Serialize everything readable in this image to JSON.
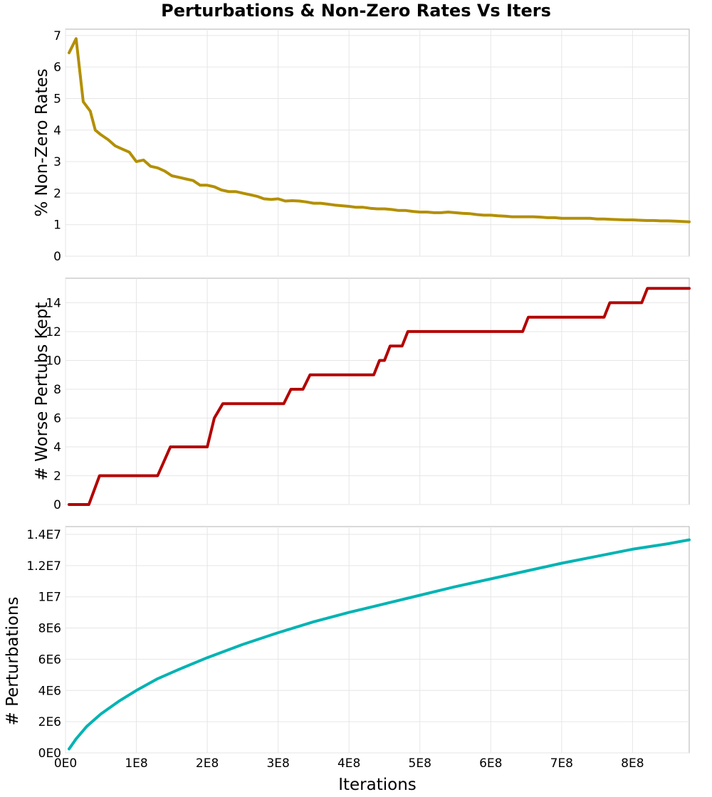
{
  "figure": {
    "title": "Perturbations & Non-Zero Rates Vs Iters",
    "xlabel": "Iterations"
  },
  "chart_data": [
    {
      "type": "line",
      "title": "",
      "ylabel": "% Non-Zero Rates",
      "xlabel": "",
      "xlim": [
        0,
        880000000
      ],
      "ylim": [
        0,
        7.2
      ],
      "yticks": [
        0,
        1,
        2,
        3,
        4,
        5,
        6,
        7
      ],
      "ytick_labels": [
        "0",
        "1",
        "2",
        "3",
        "4",
        "5",
        "6",
        "7"
      ],
      "grid": true,
      "color": "#b38f00",
      "series": [
        {
          "x": [
            5000000,
            15000000,
            25000000,
            35000000,
            42000000,
            50000000,
            60000000,
            70000000,
            80000000,
            90000000,
            100000000,
            110000000,
            120000000,
            130000000,
            140000000,
            150000000,
            160000000,
            170000000,
            180000000,
            190000000,
            200000000,
            210000000,
            220000000,
            230000000,
            240000000,
            250000000,
            260000000,
            270000000,
            280000000,
            290000000,
            300000000,
            310000000,
            320000000,
            330000000,
            340000000,
            350000000,
            360000000,
            370000000,
            380000000,
            390000000,
            400000000,
            410000000,
            420000000,
            430000000,
            440000000,
            450000000,
            460000000,
            470000000,
            480000000,
            490000000,
            500000000,
            510000000,
            520000000,
            530000000,
            540000000,
            550000000,
            560000000,
            570000000,
            580000000,
            590000000,
            600000000,
            610000000,
            620000000,
            630000000,
            640000000,
            650000000,
            660000000,
            670000000,
            680000000,
            690000000,
            700000000,
            710000000,
            720000000,
            730000000,
            740000000,
            750000000,
            760000000,
            770000000,
            780000000,
            790000000,
            800000000,
            810000000,
            820000000,
            830000000,
            840000000,
            850000000,
            860000000,
            870000000,
            880000000
          ],
          "y": [
            6.45,
            6.9,
            4.9,
            4.6,
            4.0,
            3.85,
            3.7,
            3.5,
            3.4,
            3.3,
            3.0,
            3.05,
            2.85,
            2.8,
            2.7,
            2.55,
            2.5,
            2.45,
            2.4,
            2.25,
            2.25,
            2.2,
            2.1,
            2.05,
            2.05,
            2.0,
            1.95,
            1.9,
            1.82,
            1.8,
            1.82,
            1.75,
            1.76,
            1.75,
            1.72,
            1.68,
            1.68,
            1.65,
            1.62,
            1.6,
            1.58,
            1.55,
            1.55,
            1.52,
            1.5,
            1.5,
            1.48,
            1.45,
            1.45,
            1.42,
            1.4,
            1.4,
            1.38,
            1.38,
            1.4,
            1.38,
            1.36,
            1.35,
            1.32,
            1.3,
            1.3,
            1.28,
            1.27,
            1.25,
            1.25,
            1.25,
            1.25,
            1.24,
            1.22,
            1.22,
            1.2,
            1.2,
            1.2,
            1.2,
            1.2,
            1.18,
            1.18,
            1.17,
            1.16,
            1.15,
            1.15,
            1.14,
            1.13,
            1.13,
            1.12,
            1.12,
            1.11,
            1.1,
            1.09
          ]
        }
      ]
    },
    {
      "type": "line",
      "title": "",
      "ylabel": "# Worse Pertubs Kept",
      "xlabel": "",
      "xlim": [
        0,
        880000000
      ],
      "ylim": [
        0,
        15.7
      ],
      "yticks": [
        0,
        2,
        4,
        6,
        8,
        10,
        12,
        14
      ],
      "ytick_labels": [
        "0",
        "2",
        "4",
        "6",
        "8",
        "10",
        "12",
        "14"
      ],
      "grid": true,
      "color": "#b30000",
      "series": [
        {
          "x": [
            5000000,
            33000000,
            48000000,
            130000000,
            148000000,
            200000000,
            210000000,
            222000000,
            308000000,
            318000000,
            335000000,
            345000000,
            435000000,
            443000000,
            450000000,
            458000000,
            475000000,
            483000000,
            645000000,
            653000000,
            760000000,
            768000000,
            813000000,
            821000000,
            880000000
          ],
          "y": [
            0,
            0,
            2,
            2,
            4,
            4,
            6,
            7,
            7,
            8,
            8,
            9,
            9,
            10,
            10,
            11,
            11,
            12,
            12,
            13,
            13,
            14,
            14,
            15,
            15
          ]
        }
      ]
    },
    {
      "type": "line",
      "title": "",
      "ylabel": "# Perturbations",
      "xlabel": "Iterations",
      "xlim": [
        0,
        880000000
      ],
      "ylim": [
        0,
        14500000
      ],
      "yticks": [
        0,
        2000000,
        4000000,
        6000000,
        8000000,
        10000000,
        12000000,
        14000000
      ],
      "ytick_labels": [
        "0E0",
        "2E6",
        "4E6",
        "6E6",
        "8E6",
        "1E7",
        "1.2E7",
        "1.4E7"
      ],
      "xticks": [
        0,
        100000000,
        200000000,
        300000000,
        400000000,
        500000000,
        600000000,
        700000000,
        800000000
      ],
      "xtick_labels": [
        "0E0",
        "1E8",
        "2E8",
        "3E8",
        "4E8",
        "5E8",
        "6E8",
        "7E8",
        "8E8"
      ],
      "grid": true,
      "color": "#00b3b3",
      "series": [
        {
          "x": [
            5000000,
            15000000,
            30000000,
            50000000,
            75000000,
            100000000,
            130000000,
            160000000,
            200000000,
            250000000,
            300000000,
            350000000,
            400000000,
            450000000,
            500000000,
            550000000,
            600000000,
            650000000,
            700000000,
            750000000,
            800000000,
            850000000,
            880000000
          ],
          "y": [
            250000,
            900000,
            1700000,
            2500000,
            3300000,
            4000000,
            4750000,
            5350000,
            6100000,
            6950000,
            7700000,
            8400000,
            9000000,
            9550000,
            10100000,
            10650000,
            11150000,
            11650000,
            12150000,
            12600000,
            13050000,
            13400000,
            13650000
          ]
        }
      ]
    }
  ]
}
